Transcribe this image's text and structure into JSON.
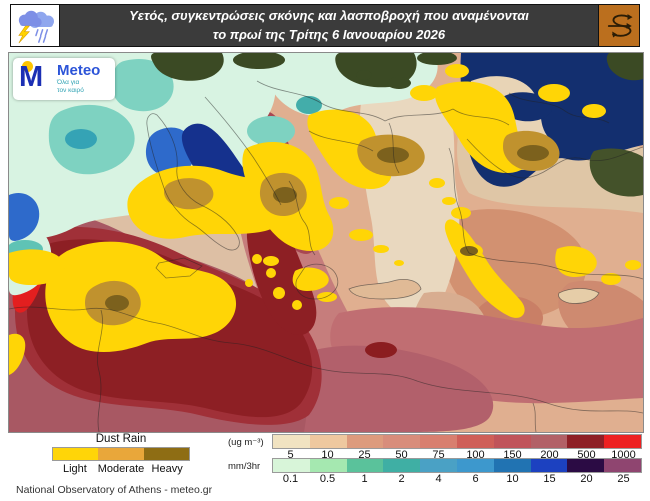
{
  "header": {
    "title_line1": "Υετός, συγκεντρώσεις σκόνης και λασποβροχή που αναμένονται",
    "title_line2": "το πρωί της Τρίτης 6 Ιανουαρίου 2026",
    "bg_color": "#3B3B3B",
    "accent_color": "#BB6F1E",
    "left_icon": "storm-cloud-icon",
    "right_icon": "wind-circulation-icon"
  },
  "logo": {
    "monogram": "M",
    "brand": "Meteo",
    "tagline_line1": "Όλα για",
    "tagline_line2": "τον καιρό",
    "brand_color": "#2C54D8",
    "dot_color": "#FFC400",
    "tagline_color": "#2FA3B4"
  },
  "map": {
    "palette": {
      "rain_light": "#D8F3E2",
      "rain_moderate": "#7ED2C1",
      "rain_strong": "#2E6ACB",
      "sea": "#132F6F",
      "land": "#3B4A24",
      "dust_low": "#E9D8BF",
      "dust_mid": "#C67D7C",
      "dust_high": "#8D1F24",
      "dust_extreme": "#E31F1F",
      "dust_rain_light": "#FFD506",
      "dust_rain_moderate": "#C0922E",
      "dust_rain_heavy": "#7C611D"
    }
  },
  "legend": {
    "dust_rain": {
      "title": "Dust Rain",
      "labels": [
        "Light",
        "Moderate",
        "Heavy"
      ],
      "colors": [
        "#FFD508",
        "#E9A73A",
        "#8E6D14"
      ]
    },
    "dust_scale": {
      "unit": "(ug m⁻³)",
      "ticks": [
        "5",
        "10",
        "25",
        "50",
        "75",
        "100",
        "150",
        "200",
        "500",
        "1000"
      ],
      "colors": [
        "#F1E3C1",
        "#EEC89F",
        "#DD9B7D",
        "#D88D7B",
        "#D87F6F",
        "#CF5F58",
        "#C0545A",
        "#B26167",
        "#8E2026",
        "#ED2121"
      ]
    },
    "rain_scale": {
      "unit": "mm/3hr",
      "ticks": [
        "0.1",
        "0.5",
        "1",
        "2",
        "4",
        "6",
        "10",
        "15",
        "20",
        "25"
      ],
      "colors": [
        "#D8F5D9",
        "#A5E8B0",
        "#5AC29B",
        "#3FAFA4",
        "#4AA1C5",
        "#3D98CD",
        "#2173B2",
        "#1C41C0",
        "#2B0B44",
        "#8F4570"
      ]
    }
  },
  "footer": {
    "credit": "National Observatory of Athens - meteo.gr"
  }
}
